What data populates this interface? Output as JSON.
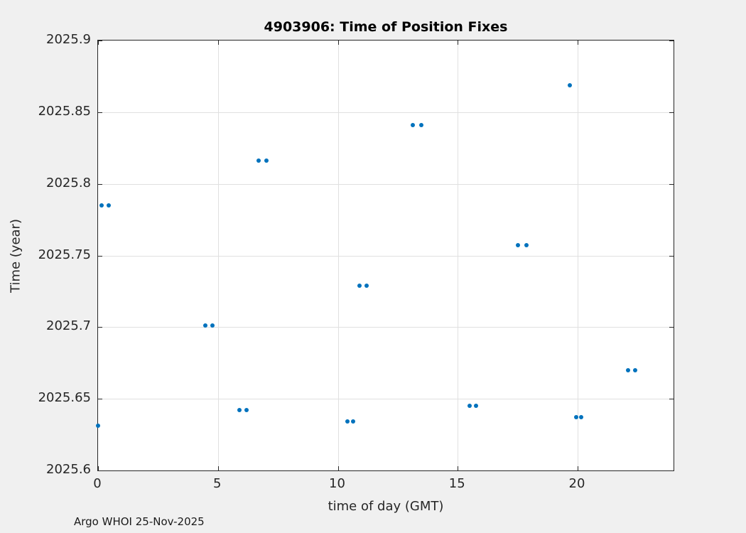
{
  "annotation": "Argo WHOI 25-Nov-2025",
  "colors": {
    "figure_background": "#F0F0F0",
    "plot_background": "#FFFFFF",
    "axis": "#262626",
    "grid": "#E0E0E0",
    "marker": "#0072BD",
    "title_text": "#000000",
    "label_text": "#262626"
  },
  "chart_data": {
    "type": "scatter",
    "title": "4903906: Time of Position Fixes",
    "xlabel": "time of day (GMT)",
    "ylabel": "Time (year)",
    "xlim": [
      0,
      24
    ],
    "ylim": [
      2025.6,
      2025.9
    ],
    "grid": true,
    "legend": "none",
    "marker": "dot",
    "marker_color": "#0072BD",
    "xticks": [
      {
        "value": 0,
        "label": "0"
      },
      {
        "value": 5,
        "label": "5"
      },
      {
        "value": 10,
        "label": "10"
      },
      {
        "value": 15,
        "label": "15"
      },
      {
        "value": 20,
        "label": "20"
      }
    ],
    "yticks": [
      {
        "value": 2025.6,
        "label": "2025.6"
      },
      {
        "value": 2025.65,
        "label": "2025.65"
      },
      {
        "value": 2025.7,
        "label": "2025.7"
      },
      {
        "value": 2025.75,
        "label": "2025.75"
      },
      {
        "value": 2025.8,
        "label": "2025.8"
      },
      {
        "value": 2025.85,
        "label": "2025.85"
      },
      {
        "value": 2025.9,
        "label": "2025.9"
      }
    ],
    "points": [
      [
        0.0,
        2025.631
      ],
      [
        0.15,
        2025.785
      ],
      [
        0.44,
        2025.785
      ],
      [
        4.46,
        2025.701
      ],
      [
        4.76,
        2025.701
      ],
      [
        5.91,
        2025.642
      ],
      [
        6.18,
        2025.642
      ],
      [
        6.71,
        2025.816
      ],
      [
        7.01,
        2025.816
      ],
      [
        10.41,
        2025.634
      ],
      [
        10.64,
        2025.634
      ],
      [
        10.91,
        2025.729
      ],
      [
        11.2,
        2025.729
      ],
      [
        13.13,
        2025.841
      ],
      [
        13.48,
        2025.841
      ],
      [
        15.49,
        2025.645
      ],
      [
        15.76,
        2025.645
      ],
      [
        17.5,
        2025.757
      ],
      [
        17.88,
        2025.757
      ],
      [
        19.66,
        2025.869
      ],
      [
        19.95,
        2025.637
      ],
      [
        20.16,
        2025.637
      ],
      [
        22.11,
        2025.67
      ],
      [
        22.41,
        2025.67
      ]
    ]
  }
}
